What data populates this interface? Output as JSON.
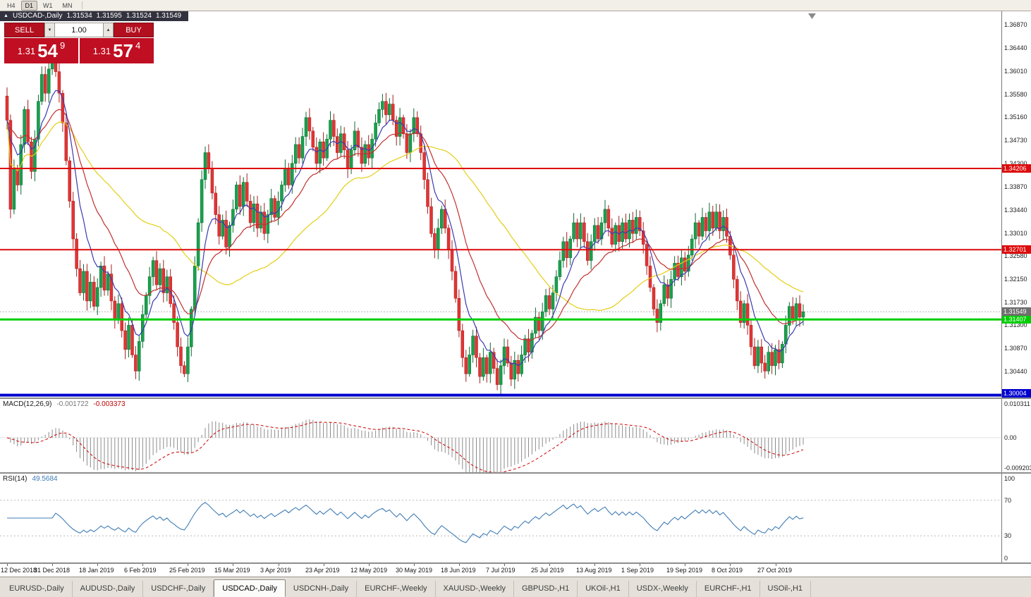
{
  "toolbar": {
    "timeframes": [
      {
        "label": "H4",
        "active": false
      },
      {
        "label": "D1",
        "active": true
      },
      {
        "label": "W1",
        "active": false
      },
      {
        "label": "MN",
        "active": false
      }
    ]
  },
  "chart_header": {
    "collapse_icon": "▲",
    "symbol_title": "USDCAD-,Daily",
    "open": "1.31534",
    "high": "1.31595",
    "low": "1.31524",
    "close": "1.31549"
  },
  "trade_widget": {
    "sell_label": "SELL",
    "buy_label": "BUY",
    "volume": "1.00",
    "volume_down_icon": "▼",
    "volume_up_icon": "▲",
    "sell_price": {
      "big": "1.31",
      "mid": "54",
      "sup": "9"
    },
    "buy_price": {
      "big": "1.31",
      "mid": "57",
      "sup": "4"
    }
  },
  "price_pane": {
    "axis_labels": [
      "1.36870",
      "1.36440",
      "1.36010",
      "1.35580",
      "1.35160",
      "1.34730",
      "1.34300",
      "1.33870",
      "1.33440",
      "1.33010",
      "1.32580",
      "1.32150",
      "1.31730",
      "1.31300",
      "1.30870",
      "1.30440"
    ],
    "hlines": [
      {
        "label": "1.34206",
        "value": 1.34206,
        "color": "#dd0b0b",
        "thickness": 2
      },
      {
        "label": "1.32701",
        "value": 1.32701,
        "color": "#dd0b0b",
        "thickness": 2
      },
      {
        "label": "1.31407",
        "value": 1.31407,
        "color": "#00ce00",
        "thickness": 3
      },
      {
        "label": "1.30004",
        "value": 1.30004,
        "color": "#0000cf",
        "thickness": 4
      }
    ],
    "current_price": {
      "label": "1.31549",
      "value": 1.31549,
      "color": "#6f6f6f"
    }
  },
  "macd_pane": {
    "title": "MACD(12,26,9)",
    "value_main": "-0.001722",
    "value_signal": "-0.003373",
    "axis_labels": [
      "0.010311",
      "0.00",
      "-0.0092030"
    ],
    "ymax": 0.010311,
    "ymin": -0.009203,
    "histogram_color": "#8c8c8c",
    "signal_color": "#cc0000",
    "params": {
      "fast": 12,
      "slow": 26,
      "signal": 9
    }
  },
  "rsi_pane": {
    "title": "RSI(14)",
    "value": "49.5684",
    "axis_labels": [
      "100",
      "70",
      "30",
      "0"
    ],
    "levels": [
      70,
      30
    ],
    "line_color": "#3f7cb6",
    "period": 14
  },
  "time_axis": {
    "labels": [
      "12 Dec 2018",
      "31 Dec 2018",
      "18 Jan 2019",
      "6 Feb 2019",
      "25 Feb 2019",
      "15 Mar 2019",
      "3 Apr 2019",
      "23 Apr 2019",
      "12 May 2019",
      "30 May 2019",
      "18 Jun 2019",
      "7 Jul 2019",
      "25 Jul 2019",
      "13 Aug 2019",
      "1 Sep 2019",
      "19 Sep 2019",
      "8 Oct 2019",
      "27 Oct 2019"
    ]
  },
  "tabs": [
    {
      "label": "EURUSD-,Daily",
      "active": false
    },
    {
      "label": "AUDUSD-,Daily",
      "active": false
    },
    {
      "label": "USDCHF-,Daily",
      "active": false
    },
    {
      "label": "USDCAD-,Daily",
      "active": true
    },
    {
      "label": "USDCNH-,Daily",
      "active": false
    },
    {
      "label": "EURCHF-,Weekly",
      "active": false
    },
    {
      "label": "XAUUSD-,Weekly",
      "active": false
    },
    {
      "label": "GBPUSD-,H1",
      "active": false
    },
    {
      "label": "UKOil-,H1",
      "active": false
    },
    {
      "label": "USDX-,Weekly",
      "active": false
    },
    {
      "label": "EURCHF-,H1",
      "active": false
    },
    {
      "label": "USOil-,H1",
      "active": false
    }
  ],
  "chart_data": {
    "type": "candlestick",
    "title": "USDCAD-,Daily",
    "x_range": "12 Dec 2018 - early Nov 2019",
    "price_range": [
      1.2996,
      1.3712
    ],
    "ohlc_display": {
      "open": 1.31534,
      "high": 1.31595,
      "low": 1.31524,
      "close": 1.31549
    },
    "support_resistance": [
      1.34206,
      1.32701,
      1.31407,
      1.30004
    ],
    "colors": {
      "up": "#18a14c",
      "up_border": "#0b6b31",
      "down": "#e23434",
      "down_border": "#a81f1f"
    },
    "overlays": [
      {
        "name": "ma-slow",
        "method": "sma",
        "period": 45,
        "color": "#e3ce14"
      },
      {
        "name": "ma-mid",
        "method": "ema",
        "period": 20,
        "color": "#c23030"
      },
      {
        "name": "ma-fast",
        "method": "ema",
        "period": 8,
        "color": "#3a3ab0"
      }
    ],
    "closes": [
      1.351,
      1.3345,
      1.342,
      1.339,
      1.3465,
      1.353,
      1.347,
      1.3415,
      1.3475,
      1.3545,
      1.3595,
      1.356,
      1.3605,
      1.362,
      1.36,
      1.356,
      1.3505,
      1.3435,
      1.336,
      1.329,
      1.3235,
      1.319,
      1.323,
      1.3175,
      1.321,
      1.3165,
      1.32,
      1.324,
      1.3195,
      1.3225,
      1.3175,
      1.314,
      1.317,
      1.312,
      1.3085,
      1.313,
      1.3075,
      1.3045,
      1.31,
      1.315,
      1.3185,
      1.322,
      1.325,
      1.3205,
      1.3235,
      1.319,
      1.322,
      1.317,
      1.3135,
      1.309,
      1.3055,
      1.304,
      1.309,
      1.316,
      1.324,
      1.332,
      1.34,
      1.345,
      1.342,
      1.3375,
      1.3335,
      1.3295,
      1.3325,
      1.3275,
      1.3315,
      1.3345,
      1.339,
      1.335,
      1.3395,
      1.336,
      1.332,
      1.3355,
      1.331,
      1.334,
      1.33,
      1.3335,
      1.3365,
      1.333,
      1.336,
      1.339,
      1.342,
      1.339,
      1.343,
      1.3465,
      1.344,
      1.348,
      1.3515,
      1.349,
      1.346,
      1.343,
      1.347,
      1.344,
      1.3475,
      1.351,
      1.348,
      1.345,
      1.3485,
      1.3455,
      1.342,
      1.3455,
      1.349,
      1.346,
      1.343,
      1.3465,
      1.344,
      1.3475,
      1.3505,
      1.353,
      1.3545,
      1.352,
      1.354,
      1.351,
      1.348,
      1.3515,
      1.3485,
      1.345,
      1.3485,
      1.3515,
      1.3485,
      1.345,
      1.34,
      1.335,
      1.33,
      1.327,
      1.331,
      1.3345,
      1.331,
      1.327,
      1.323,
      1.318,
      1.312,
      1.307,
      1.304,
      1.3075,
      1.311,
      1.307,
      1.3035,
      1.307,
      1.304,
      1.308,
      1.305,
      1.302,
      1.3055,
      1.309,
      1.306,
      1.303,
      1.3065,
      1.304,
      1.3075,
      1.3105,
      1.308,
      1.3115,
      1.3145,
      1.312,
      1.3155,
      1.3185,
      1.316,
      1.319,
      1.322,
      1.325,
      1.3285,
      1.3255,
      1.329,
      1.332,
      1.329,
      1.332,
      1.3285,
      1.325,
      1.3285,
      1.3315,
      1.329,
      1.332,
      1.3345,
      1.331,
      1.328,
      1.3315,
      1.3285,
      1.332,
      1.329,
      1.3325,
      1.33,
      1.333,
      1.3305,
      1.328,
      1.324,
      1.32,
      1.316,
      1.3135,
      1.317,
      1.3205,
      1.318,
      1.3215,
      1.3245,
      1.322,
      1.3255,
      1.323,
      1.326,
      1.329,
      1.332,
      1.3295,
      1.333,
      1.3305,
      1.334,
      1.331,
      1.334,
      1.3305,
      1.333,
      1.3295,
      1.326,
      1.3215,
      1.3175,
      1.3135,
      1.317,
      1.313,
      1.309,
      1.3055,
      1.309,
      1.306,
      1.3045,
      1.308,
      1.3055,
      1.3085,
      1.306,
      1.3095,
      1.313,
      1.3165,
      1.314,
      1.317,
      1.3145,
      1.31549
    ]
  }
}
